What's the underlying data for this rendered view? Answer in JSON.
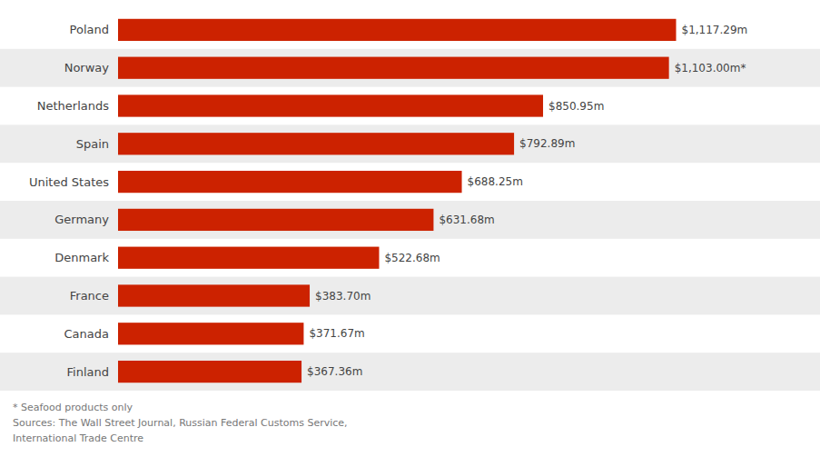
{
  "chart_data": {
    "type": "bar",
    "orientation": "horizontal",
    "categories": [
      "Poland",
      "Norway",
      "Netherlands",
      "Spain",
      "United States",
      "Germany",
      "Denmark",
      "France",
      "Canada",
      "Finland"
    ],
    "values": [
      1117.29,
      1103.0,
      850.95,
      792.89,
      688.25,
      631.68,
      522.68,
      383.7,
      371.67,
      367.36
    ],
    "value_labels": [
      "$1,117.29m",
      "$1,103.00m*",
      "$850.95m",
      "$792.89m",
      "$688.25m",
      "$631.68m",
      "$522.68m",
      "$383.70m",
      "$371.67m",
      "$367.36m"
    ],
    "color": "#cc2200",
    "xlim": [
      0,
      1200
    ],
    "data_labels": true,
    "tick_labels": "y",
    "grid": false,
    "annotations": [
      "* Seafood products only",
      "Sources: The Wall Street Journal, Russian Federal Customs Service,",
      "International Trade Centre"
    ]
  }
}
